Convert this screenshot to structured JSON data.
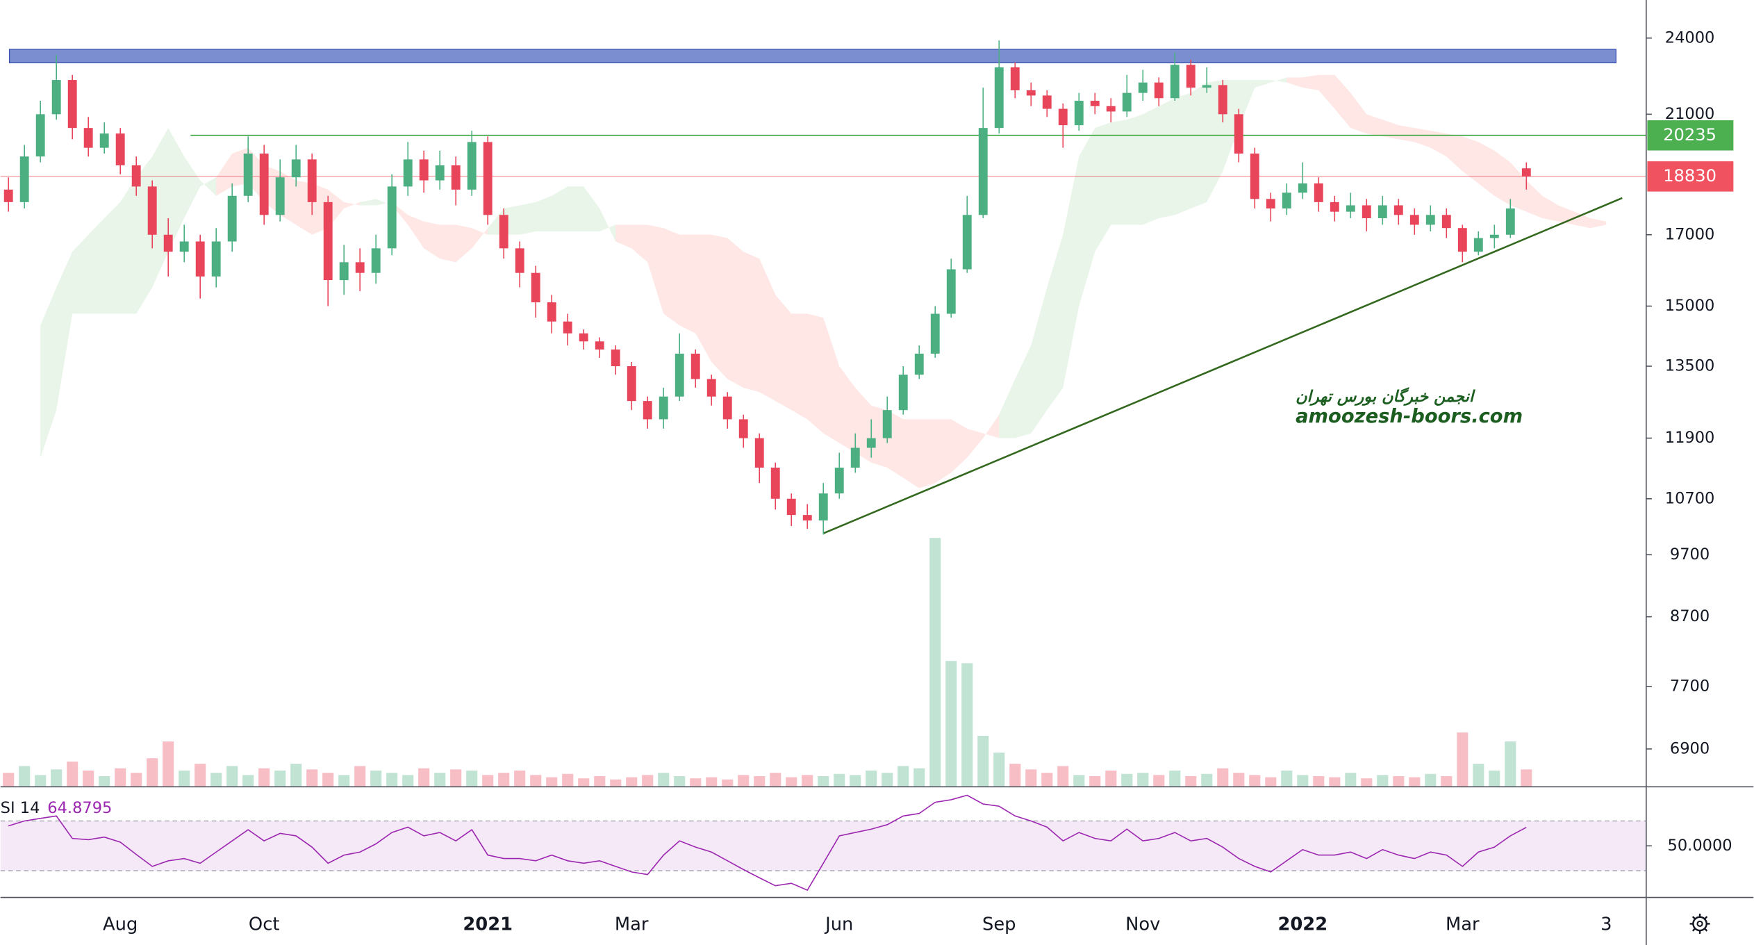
{
  "chart_data": {
    "type": "candlestick",
    "log": true,
    "ylim": [
      6464,
      25656
    ],
    "yticks": [
      6900,
      7700,
      8700,
      9700,
      10700,
      11900,
      13500,
      15000,
      17000,
      21000,
      24000
    ],
    "up_color": "#4caf82",
    "down_color": "#e8445a",
    "categories": [
      null,
      null,
      null,
      null,
      null,
      null,
      null,
      "Aug",
      null,
      null,
      null,
      null,
      null,
      null,
      null,
      null,
      "Oct",
      null,
      null,
      null,
      null,
      null,
      null,
      null,
      null,
      null,
      null,
      null,
      null,
      null,
      "2021",
      null,
      null,
      null,
      null,
      null,
      null,
      null,
      null,
      "Mar",
      null,
      null,
      null,
      null,
      null,
      null,
      null,
      null,
      null,
      null,
      null,
      null,
      "Jun",
      null,
      null,
      null,
      null,
      null,
      null,
      null,
      null,
      null,
      "Sep",
      null,
      null,
      null,
      null,
      null,
      null,
      null,
      null,
      "Nov",
      null,
      null,
      null,
      null,
      null,
      null,
      null,
      null,
      null,
      "2022",
      null,
      null,
      null,
      null,
      null,
      null,
      null,
      null,
      null,
      "Mar",
      null,
      null,
      null,
      null,
      null,
      null,
      null,
      null,
      "3",
      null,
      null
    ],
    "open": [
      18400,
      18000,
      19500,
      21000,
      22300,
      20500,
      19800,
      20300,
      19200,
      18500,
      17000,
      16500,
      16800,
      15800,
      16800,
      18200,
      19600,
      17600,
      18800,
      19400,
      18000,
      15700,
      16200,
      15900,
      16600,
      18500,
      19400,
      18700,
      19200,
      18400,
      20000,
      17600,
      16600,
      15900,
      15100,
      14600,
      14300,
      14100,
      13900,
      13500,
      12700,
      12300,
      12800,
      13800,
      13200,
      12800,
      12300,
      11900,
      11300,
      10700,
      10400,
      10300,
      10800,
      11300,
      11700,
      11900,
      12500,
      13300,
      13800,
      14800,
      16000,
      17600,
      20500,
      22800,
      21900,
      21700,
      21200,
      20600,
      21500,
      21300,
      21100,
      21800,
      22200,
      21600,
      22900,
      22000,
      22100,
      21000,
      19600,
      18100,
      17800,
      18300,
      18600,
      18000,
      17700,
      17900,
      17500,
      17900,
      17600,
      17300,
      17600,
      17200,
      16500,
      16900,
      17000,
      19100,
      null,
      null,
      null,
      null,
      null,
      null,
      null
    ],
    "high": [
      18800,
      19900,
      21500,
      23300,
      22500,
      20900,
      20700,
      20500,
      19500,
      18700,
      17500,
      17300,
      17000,
      17200,
      18600,
      20200,
      19900,
      19400,
      19900,
      19600,
      18200,
      16700,
      16600,
      17000,
      18900,
      20000,
      19700,
      19700,
      19500,
      20400,
      20200,
      17800,
      16800,
      16100,
      15300,
      14800,
      14400,
      14200,
      14000,
      13600,
      12800,
      13000,
      14300,
      13900,
      13300,
      12900,
      12400,
      12000,
      11400,
      10800,
      10600,
      11000,
      11600,
      12000,
      12300,
      12800,
      13500,
      14000,
      15000,
      16300,
      18200,
      22000,
      23900,
      23000,
      22200,
      21900,
      21400,
      21800,
      21800,
      21600,
      22500,
      22700,
      22400,
      23400,
      23100,
      22800,
      22300,
      21200,
      19800,
      18300,
      18600,
      19300,
      18800,
      18200,
      18300,
      18100,
      18200,
      18100,
      17800,
      17900,
      17800,
      17300,
      17100,
      17300,
      18100,
      19300,
      null,
      null,
      null,
      null,
      null,
      null,
      null
    ],
    "low": [
      17700,
      17800,
      19300,
      20800,
      20100,
      19500,
      19600,
      18900,
      18200,
      16600,
      15800,
      16200,
      15200,
      15500,
      16500,
      18000,
      17300,
      17400,
      18500,
      17600,
      15000,
      15300,
      15400,
      15600,
      16400,
      18200,
      18300,
      18400,
      17900,
      18200,
      17300,
      16300,
      15500,
      14700,
      14300,
      14000,
      13900,
      13700,
      13300,
      12500,
      12100,
      12100,
      12700,
      13000,
      12600,
      12100,
      11700,
      11000,
      10500,
      10200,
      10150,
      10050,
      10700,
      11200,
      11500,
      11800,
      12400,
      13200,
      13700,
      14700,
      15900,
      17500,
      20300,
      21600,
      21300,
      20900,
      19800,
      20400,
      21000,
      20700,
      20900,
      21500,
      21300,
      21500,
      21700,
      21800,
      20700,
      19300,
      17800,
      17400,
      17600,
      18100,
      17700,
      17400,
      17500,
      17100,
      17300,
      17300,
      17000,
      17100,
      16900,
      16200,
      16400,
      16600,
      16900,
      18400,
      null,
      null,
      null,
      null,
      null,
      null,
      null
    ],
    "close": [
      18000,
      19500,
      21000,
      22300,
      20500,
      19800,
      20300,
      19200,
      18500,
      17000,
      16500,
      16800,
      15800,
      16800,
      18200,
      19600,
      17600,
      18800,
      19400,
      18000,
      15700,
      16200,
      15900,
      16600,
      18500,
      19400,
      18700,
      19200,
      18400,
      20000,
      17600,
      16600,
      15900,
      15100,
      14600,
      14300,
      14100,
      13900,
      13500,
      12700,
      12300,
      12800,
      13800,
      13200,
      12800,
      12300,
      11900,
      11300,
      10700,
      10400,
      10300,
      10800,
      11300,
      11700,
      11900,
      12500,
      13300,
      13800,
      14800,
      16000,
      17600,
      20500,
      22800,
      21900,
      21700,
      21200,
      20600,
      21500,
      21300,
      21100,
      21800,
      22200,
      21600,
      22900,
      22000,
      22100,
      21000,
      19600,
      18100,
      17800,
      18300,
      18600,
      18000,
      17700,
      17900,
      17500,
      17900,
      17600,
      17300,
      17600,
      17200,
      16500,
      16900,
      17000,
      17800,
      18830,
      null,
      null,
      null,
      null,
      null,
      null,
      null
    ],
    "volume": [
      12,
      18,
      10,
      15,
      22,
      14,
      9,
      16,
      12,
      25,
      40,
      14,
      20,
      12,
      18,
      10,
      16,
      14,
      20,
      15,
      12,
      10,
      18,
      14,
      12,
      10,
      16,
      12,
      15,
      14,
      10,
      12,
      14,
      10,
      8,
      11,
      7,
      9,
      6,
      8,
      10,
      12,
      9,
      7,
      8,
      6,
      10,
      9,
      12,
      8,
      10,
      9,
      11,
      10,
      14,
      12,
      18,
      16,
      222,
      112,
      110,
      45,
      30,
      20,
      15,
      12,
      18,
      10,
      9,
      14,
      11,
      12,
      10,
      14,
      9,
      11,
      16,
      12,
      10,
      8,
      14,
      10,
      9,
      8,
      12,
      7,
      10,
      9,
      8,
      11,
      9,
      48,
      20,
      14,
      40,
      15,
      null,
      null,
      null,
      null,
      null,
      null,
      null
    ],
    "ichimoku": {
      "span_a": [
        null,
        null,
        14500,
        15500,
        16500,
        17000,
        17500,
        18000,
        18800,
        19500,
        20500,
        19500,
        18700,
        18200,
        18500,
        18600,
        18000,
        17600,
        17300,
        17000,
        17200,
        17800,
        18000,
        18100,
        17900,
        17300,
        16600,
        16300,
        16200,
        16600,
        17200,
        17800,
        17900,
        18000,
        18200,
        18500,
        18500,
        17800,
        16800,
        16600,
        16200,
        14800,
        14500,
        14300,
        13600,
        13200,
        13000,
        12900,
        12700,
        12500,
        12300,
        12000,
        11800,
        11600,
        11400,
        11300,
        11100,
        10900,
        11000,
        11200,
        11500,
        11900,
        12400,
        13200,
        14000,
        15500,
        17000,
        19500,
        20500,
        20700,
        20800,
        21000,
        21300,
        21600,
        21800,
        22200,
        22300,
        22300,
        22300,
        22300,
        22200,
        22000,
        21900,
        21200,
        20500,
        20300,
        20200,
        20100,
        20000,
        19800,
        19500,
        19000,
        18600,
        18200,
        17900,
        17700,
        17500,
        17400,
        17300,
        17200,
        17300,
        null,
        null
      ],
      "span_b": [
        null,
        null,
        11500,
        12500,
        14800,
        14800,
        14800,
        14800,
        14800,
        15500,
        16500,
        17500,
        18500,
        18800,
        19600,
        19800,
        19200,
        19000,
        18700,
        18600,
        18400,
        18000,
        17900,
        17900,
        18000,
        17600,
        17400,
        17300,
        17300,
        17200,
        17000,
        17000,
        17000,
        17100,
        17100,
        17100,
        17100,
        17100,
        17300,
        17300,
        17300,
        17200,
        17000,
        17000,
        17000,
        16900,
        16500,
        16300,
        15300,
        14800,
        14800,
        14700,
        13500,
        13000,
        12600,
        12500,
        12300,
        12300,
        12300,
        12300,
        12100,
        12000,
        11900,
        11900,
        12000,
        12500,
        13000,
        15000,
        16500,
        17300,
        17300,
        17300,
        17500,
        17600,
        17800,
        18000,
        19000,
        20500,
        22000,
        22200,
        22400,
        22400,
        22500,
        22500,
        21800,
        21000,
        20800,
        20600,
        20500,
        20400,
        20300,
        20200,
        20000,
        19700,
        19300,
        18700,
        18200,
        17900,
        17700,
        17500,
        17400,
        null,
        null
      ],
      "bull_color": "#4caf50",
      "bear_color": "#f44336"
    },
    "resistance_zone": {
      "range": [
        22980,
        23530
      ],
      "color": "#7b8fd0"
    },
    "trend_line": {
      "color": "#33691e",
      "values": [
        null,
        null,
        null,
        null,
        null,
        null,
        null,
        null,
        null,
        null,
        null,
        null,
        null,
        null,
        null,
        null,
        null,
        null,
        null,
        null,
        null,
        null,
        null,
        null,
        null,
        null,
        null,
        null,
        null,
        null,
        null,
        null,
        null,
        null,
        null,
        null,
        null,
        null,
        null,
        null,
        null,
        null,
        null,
        null,
        null,
        null,
        null,
        null,
        null,
        null,
        null,
        10070,
        null,
        null,
        null,
        null,
        null,
        null,
        null,
        null,
        null,
        null,
        null,
        null,
        null,
        null,
        null,
        null,
        null,
        null,
        null,
        null,
        null,
        null,
        null,
        null,
        null,
        null,
        null,
        null,
        null,
        null,
        null,
        null,
        null,
        null,
        null,
        null,
        null,
        null,
        null,
        null,
        null,
        null,
        null,
        null,
        null,
        null,
        null,
        null,
        null,
        18130,
        null
      ]
    },
    "price_lines": [
      {
        "value": 20235,
        "color": "#4caf50"
      },
      {
        "value": 18830,
        "color": "#f0525f"
      }
    ],
    "rsi": {
      "label": "SI 14",
      "color": "#9c27b0",
      "ylim": [
        9,
        97
      ],
      "yticks": [
        {
          "value": 50,
          "label": "50.0000"
        }
      ],
      "band": [
        30,
        70
      ],
      "values": [
        66,
        70,
        72,
        74,
        56,
        55,
        57,
        53,
        43,
        33.5,
        38,
        39.8,
        36,
        45,
        54,
        63,
        54,
        60,
        58,
        49,
        36,
        42.6,
        45,
        51.6,
        60.7,
        65,
        58,
        60.7,
        54,
        63,
        42.6,
        39.8,
        39.8,
        38,
        42.6,
        38,
        36,
        38,
        33.5,
        29,
        27,
        42.6,
        54,
        49,
        45,
        38,
        31,
        24.4,
        18,
        20,
        14.4,
        36,
        58,
        60.7,
        63.4,
        67,
        74,
        76,
        85,
        87,
        90.6,
        83.6,
        81.8,
        74,
        70,
        65,
        54,
        60.7,
        56,
        54,
        63.4,
        54,
        56,
        60.7,
        54,
        56,
        49,
        39.8,
        33.5,
        29,
        38,
        47,
        42.6,
        42.6,
        45,
        39.8,
        47,
        42.6,
        39.8,
        45,
        42.6,
        33.5,
        45,
        49,
        58,
        64.8795,
        null,
        null,
        null,
        null,
        null,
        null,
        null
      ]
    },
    "watermark": [
      "انجمن خبرگان بورس تهران",
      "amoozesh-boors.com"
    ]
  }
}
